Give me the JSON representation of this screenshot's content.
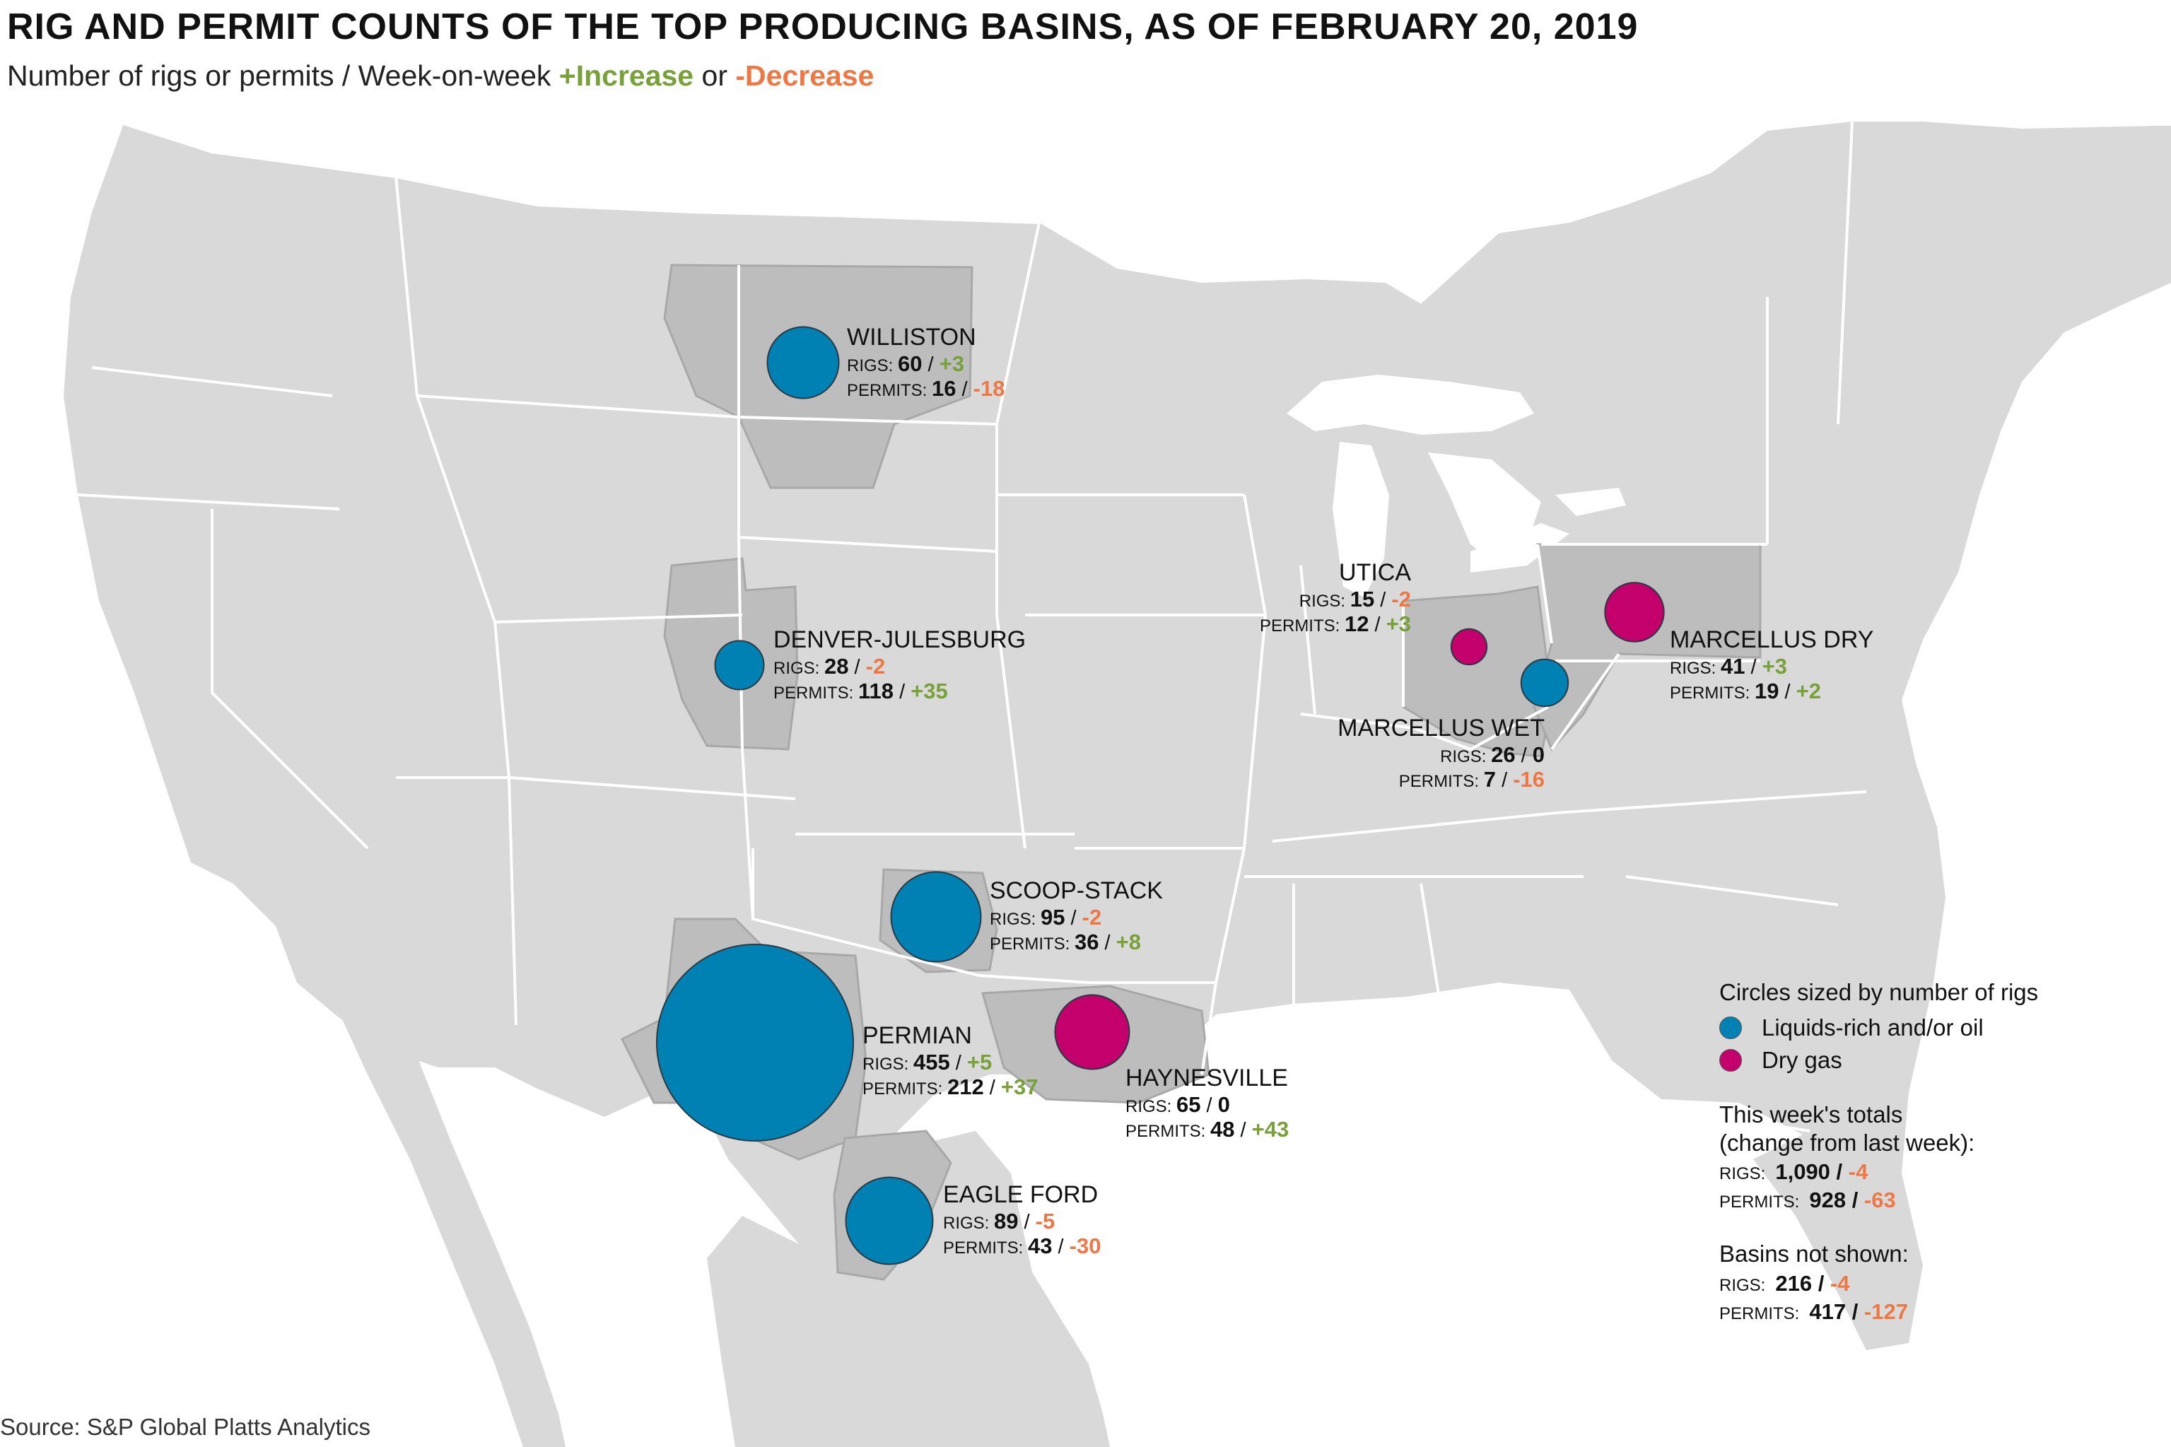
{
  "title": "RIG AND PERMIT COUNTS OF THE TOP PRODUCING BASINS, AS OF FEBRUARY 20, 2019",
  "subtitle": {
    "prefix": "Number of rigs or permits / Week-on-week ",
    "increase": "+Increase",
    "middle": " or ",
    "decrease": "-Decrease"
  },
  "source": "Source: S&P Global Platts Analytics",
  "labels": {
    "rigs": "RIGS:",
    "permits": "PERMITS:",
    "sep": " / "
  },
  "colors": {
    "liquids": "#0081b3",
    "dry_gas": "#c4006d",
    "increase": "#79a13a",
    "decrease": "#ee7844",
    "land": "#d9d9d9",
    "basin_region": "#bdbdbd",
    "border": "#ffffff",
    "water": "#ffffff"
  },
  "basins": [
    {
      "name": "WILLISTON",
      "type": "liquids",
      "rigs": "60",
      "rigs_change": "+3",
      "permits": "16",
      "permits_change": "-18"
    },
    {
      "name": "DENVER-JULESBURG",
      "type": "liquids",
      "rigs": "28",
      "rigs_change": "-2",
      "permits": "118",
      "permits_change": "+35"
    },
    {
      "name": "SCOOP-STACK",
      "type": "liquids",
      "rigs": "95",
      "rigs_change": "-2",
      "permits": "36",
      "permits_change": "+8"
    },
    {
      "name": "PERMIAN",
      "type": "liquids",
      "rigs": "455",
      "rigs_change": "+5",
      "permits": "212",
      "permits_change": "+37"
    },
    {
      "name": "EAGLE FORD",
      "type": "liquids",
      "rigs": "89",
      "rigs_change": "-5",
      "permits": "43",
      "permits_change": "-30"
    },
    {
      "name": "HAYNESVILLE",
      "type": "dry_gas",
      "rigs": "65",
      "rigs_change": "0",
      "permits": "48",
      "permits_change": "+43"
    },
    {
      "name": "UTICA",
      "type": "dry_gas",
      "rigs": "15",
      "rigs_change": "-2",
      "permits": "12",
      "permits_change": "+3"
    },
    {
      "name": "MARCELLUS WET",
      "type": "liquids",
      "rigs": "26",
      "rigs_change": "0",
      "permits": "7",
      "permits_change": "-16"
    },
    {
      "name": "MARCELLUS DRY",
      "type": "dry_gas",
      "rigs": "41",
      "rigs_change": "+3",
      "permits": "19",
      "permits_change": "+2"
    }
  ],
  "legend": {
    "title": "Circles sized by number of rigs",
    "items": [
      {
        "label": "Liquids-rich and/or oil",
        "type": "liquids"
      },
      {
        "label": "Dry gas",
        "type": "dry_gas"
      }
    ],
    "totals": {
      "heading_line1": "This week's totals",
      "heading_line2": "(change from last week):",
      "rigs": "1,090",
      "rigs_change": "-4",
      "permits": "928",
      "permits_change": "-63"
    },
    "not_shown": {
      "heading": "Basins not shown:",
      "rigs": "216",
      "rigs_change": "-4",
      "permits": "417",
      "permits_change": "-127"
    }
  }
}
